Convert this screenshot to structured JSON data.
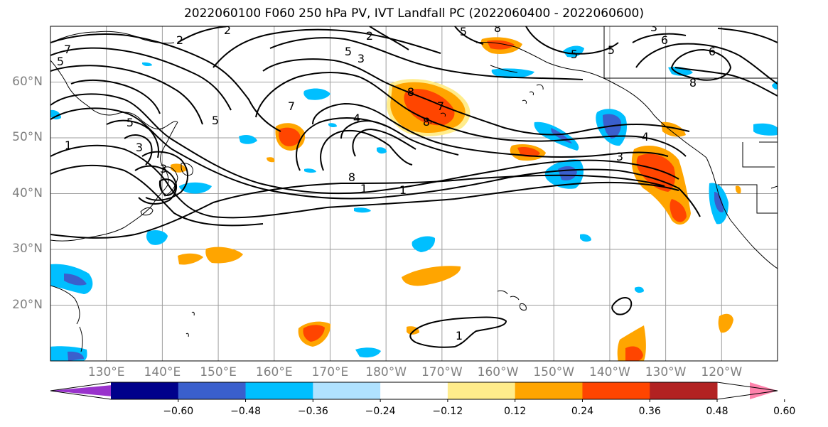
{
  "title": "2022060100 F060 250 hPa PV, IVT Landfall PC (2022060400 - 2022060600)",
  "map": {
    "lat_labels": [
      {
        "text": "60°N",
        "lat": 60
      },
      {
        "text": "50°N",
        "lat": 50
      },
      {
        "text": "40°N",
        "lat": 40
      },
      {
        "text": "30°N",
        "lat": 30
      },
      {
        "text": "20°N",
        "lat": 20
      }
    ],
    "lon_labels": [
      {
        "text": "130°E",
        "lon": 130
      },
      {
        "text": "140°E",
        "lon": 140
      },
      {
        "text": "150°E",
        "lon": 150
      },
      {
        "text": "160°E",
        "lon": 160
      },
      {
        "text": "170°E",
        "lon": 170
      },
      {
        "text": "180°W",
        "lon": 180
      },
      {
        "text": "170°W",
        "lon": 190
      },
      {
        "text": "160°W",
        "lon": 200
      },
      {
        "text": "150°W",
        "lon": 210
      },
      {
        "text": "140°W",
        "lon": 220
      },
      {
        "text": "130°W",
        "lon": 230
      },
      {
        "text": "120°W",
        "lon": 240
      }
    ],
    "contour_labels": [
      "1",
      "2",
      "5",
      "6",
      "7",
      "8",
      "3",
      "4"
    ],
    "colors": {
      "grid": "#9e9e9e",
      "contour": "#000000",
      "coast": "#000000"
    }
  },
  "colorbar": {
    "ticks": [
      "−0.60",
      "−0.48",
      "−0.36",
      "−0.24",
      "−0.12",
      "0.12",
      "0.24",
      "0.36",
      "0.48",
      "0.60"
    ],
    "bins": [
      "#9932cc",
      "#00008b",
      "#3a5fcd",
      "#00bfff",
      "#b0e2ff",
      "#ffffff",
      "#ffec8b",
      "#ffa500",
      "#ff4500",
      "#b22222",
      "#ff82ab"
    ]
  }
}
